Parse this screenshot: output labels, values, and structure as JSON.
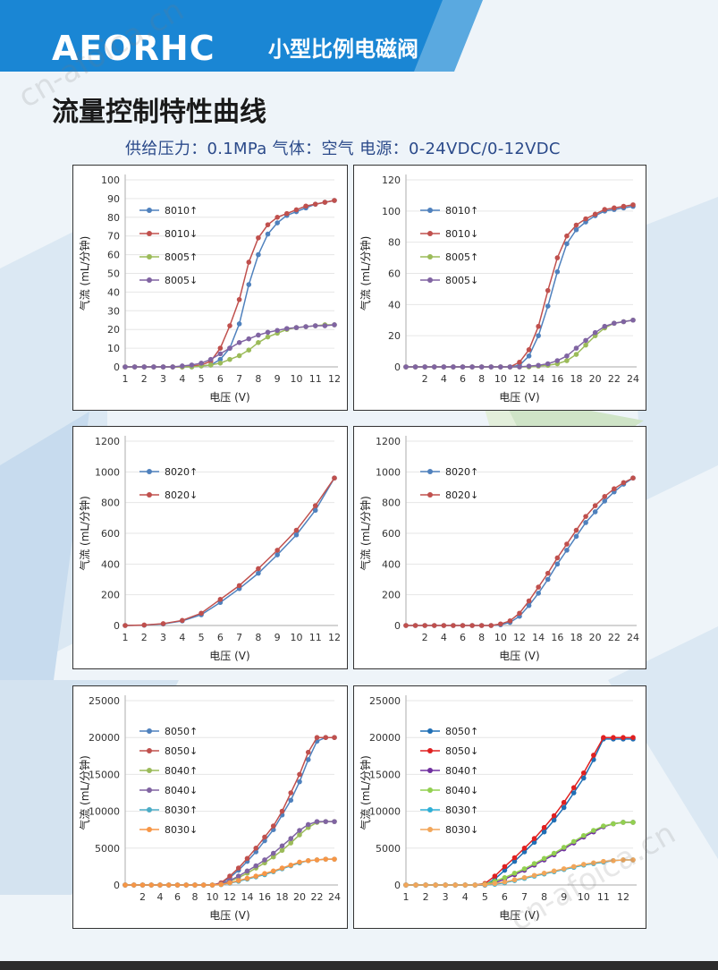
{
  "header": {
    "brand": "AEORHC",
    "product": "小型比例电磁阀",
    "title": "流量控制特性曲线",
    "conditions": "供给压力：0.1MPa 气体：空气 电源：0-24VDC/0-12VDC",
    "colors": {
      "banner": "#1a86d4",
      "title": "#1a1a1a",
      "subtitle": "#2b4a8a"
    }
  },
  "watermarks": [
    "cn-afoica.cn",
    "cn-afoica.cn"
  ],
  "chart_data": [
    {
      "type": "line",
      "xlabel": "电压 (V)",
      "ylabel": "气流 (mL/分钟)",
      "xlim": [
        1,
        12
      ],
      "ylim": [
        0,
        100
      ],
      "xticks": [
        "1",
        "2",
        "3",
        "4",
        "5",
        "6",
        "7",
        "8",
        "9",
        "10",
        "11",
        "12"
      ],
      "yticks": [
        "0",
        "10",
        "20",
        "30",
        "40",
        "50",
        "60",
        "70",
        "80",
        "90",
        "100"
      ],
      "x": [
        1,
        1.5,
        2,
        2.5,
        3,
        3.5,
        4,
        4.5,
        5,
        5.5,
        6,
        6.5,
        7,
        7.5,
        8,
        8.5,
        9,
        9.5,
        10,
        10.5,
        11,
        11.5,
        12
      ],
      "series": [
        {
          "name": "8010↑",
          "color": "#4f81bd",
          "values": [
            0,
            0,
            0,
            0,
            0,
            0,
            0,
            0,
            0.5,
            1,
            4,
            10,
            23,
            44,
            60,
            71,
            77,
            81,
            83,
            85,
            87,
            88,
            89
          ]
        },
        {
          "name": "8010↓",
          "color": "#c0504d",
          "values": [
            0,
            0,
            0,
            0,
            0,
            0,
            0,
            0.5,
            1,
            3,
            10,
            22,
            36,
            56,
            69,
            76,
            80,
            82,
            84,
            86,
            87,
            88,
            89
          ]
        },
        {
          "name": "8005↑",
          "color": "#9bbb59",
          "values": [
            0,
            0,
            0,
            0,
            0,
            0,
            0,
            0,
            0.5,
            1,
            2,
            4,
            6,
            9,
            13,
            16,
            18,
            20,
            21,
            21.5,
            22,
            22.5,
            22.5
          ]
        },
        {
          "name": "8005↓",
          "color": "#8064a2",
          "values": [
            0,
            0,
            0,
            0,
            0,
            0,
            0.5,
            1,
            2,
            4,
            7,
            10,
            13,
            15,
            17,
            18.5,
            19.5,
            20.5,
            21,
            21.5,
            22,
            22,
            22.5
          ]
        }
      ],
      "legend": "top-left"
    },
    {
      "type": "line",
      "xlabel": "电压 (V)",
      "ylabel": "气流 (mL/分钟)",
      "xlim": [
        0,
        24
      ],
      "ylim": [
        0,
        120
      ],
      "xticks": [
        "2",
        "4",
        "6",
        "8",
        "10",
        "12",
        "14",
        "16",
        "18",
        "20",
        "22",
        "24"
      ],
      "yticks": [
        "0",
        "20",
        "40",
        "60",
        "80",
        "100",
        "120"
      ],
      "x": [
        0,
        1,
        2,
        3,
        4,
        5,
        6,
        7,
        8,
        9,
        10,
        11,
        12,
        13,
        14,
        15,
        16,
        17,
        18,
        19,
        20,
        21,
        22,
        23,
        24
      ],
      "series": [
        {
          "name": "8010↑",
          "color": "#4f81bd",
          "values": [
            0,
            0,
            0,
            0,
            0,
            0,
            0,
            0,
            0,
            0,
            0,
            0,
            1,
            7,
            20,
            39,
            61,
            79,
            88,
            93,
            97,
            100,
            101,
            102,
            103
          ]
        },
        {
          "name": "8010↓",
          "color": "#c0504d",
          "values": [
            0,
            0,
            0,
            0,
            0,
            0,
            0,
            0,
            0,
            0,
            0,
            0,
            3,
            11,
            26,
            49,
            70,
            84,
            91,
            95,
            98,
            101,
            102,
            103,
            104
          ]
        },
        {
          "name": "8005↑",
          "color": "#9bbb59",
          "values": [
            0,
            0,
            0,
            0,
            0,
            0,
            0,
            0,
            0,
            0,
            0,
            0,
            0,
            0,
            0.5,
            1,
            2,
            4,
            8,
            14,
            20,
            25,
            28,
            29,
            30
          ]
        },
        {
          "name": "8005↓",
          "color": "#8064a2",
          "values": [
            0,
            0,
            0,
            0,
            0,
            0,
            0,
            0,
            0,
            0,
            0,
            0,
            0,
            0.5,
            1,
            2,
            4,
            7,
            12,
            17,
            22,
            26,
            28,
            29,
            30
          ]
        }
      ],
      "legend": "top-left"
    },
    {
      "type": "line",
      "xlabel": "电压 (V)",
      "ylabel": "气流 (mL/分钟)",
      "xlim": [
        1,
        12
      ],
      "ylim": [
        0,
        1200
      ],
      "xticks": [
        "1",
        "2",
        "3",
        "4",
        "5",
        "6",
        "7",
        "8",
        "9",
        "10",
        "11",
        "12"
      ],
      "yticks": [
        "0",
        "200",
        "400",
        "600",
        "800",
        "1000",
        "1200"
      ],
      "x": [
        1,
        2,
        3,
        4,
        5,
        6,
        7,
        8,
        9,
        10,
        11,
        12
      ],
      "series": [
        {
          "name": "8020↑",
          "color": "#4f81bd",
          "values": [
            0,
            2,
            10,
            30,
            70,
            150,
            240,
            340,
            460,
            590,
            750,
            960
          ]
        },
        {
          "name": "8020↓",
          "color": "#c0504d",
          "values": [
            0,
            3,
            12,
            33,
            80,
            170,
            260,
            370,
            490,
            620,
            780,
            960
          ]
        }
      ],
      "legend": "top-left"
    },
    {
      "type": "line",
      "xlabel": "电压 (V)",
      "ylabel": "气流 (mL/分钟)",
      "xlim": [
        0,
        24
      ],
      "ylim": [
        0,
        1200
      ],
      "xticks": [
        "2",
        "4",
        "6",
        "8",
        "10",
        "12",
        "14",
        "16",
        "18",
        "20",
        "22",
        "24"
      ],
      "yticks": [
        "0",
        "200",
        "400",
        "600",
        "800",
        "1000",
        "1200"
      ],
      "x": [
        0,
        1,
        2,
        3,
        4,
        5,
        6,
        7,
        8,
        9,
        10,
        11,
        12,
        13,
        14,
        15,
        16,
        17,
        18,
        19,
        20,
        21,
        22,
        23,
        24
      ],
      "series": [
        {
          "name": "8020↑",
          "color": "#4f81bd",
          "values": [
            0,
            0,
            0,
            0,
            0,
            0,
            0,
            0,
            0,
            0,
            5,
            20,
            60,
            130,
            210,
            300,
            400,
            490,
            580,
            670,
            740,
            810,
            870,
            920,
            960
          ]
        },
        {
          "name": "8020↓",
          "color": "#c0504d",
          "values": [
            0,
            0,
            0,
            0,
            0,
            0,
            0,
            0,
            0,
            0,
            10,
            30,
            80,
            160,
            250,
            340,
            440,
            530,
            620,
            710,
            780,
            840,
            890,
            930,
            960
          ]
        }
      ],
      "legend": "top-left"
    },
    {
      "type": "line",
      "xlabel": "电压 (V)",
      "ylabel": "气流 (mL/分钟)",
      "xlim": [
        0,
        24
      ],
      "ylim": [
        0,
        25000
      ],
      "xticks": [
        "2",
        "4",
        "6",
        "8",
        "10",
        "12",
        "14",
        "16",
        "18",
        "20",
        "22",
        "24"
      ],
      "yticks": [
        "0",
        "5000",
        "10000",
        "15000",
        "20000",
        "25000"
      ],
      "x": [
        0,
        1,
        2,
        3,
        4,
        5,
        6,
        7,
        8,
        9,
        10,
        11,
        12,
        13,
        14,
        15,
        16,
        17,
        18,
        19,
        20,
        21,
        22,
        23,
        24
      ],
      "series": [
        {
          "name": "8050↑",
          "color": "#4f81bd",
          "values": [
            0,
            0,
            0,
            0,
            0,
            0,
            0,
            0,
            0,
            0,
            0,
            200,
            1000,
            2000,
            3200,
            4500,
            6000,
            7500,
            9500,
            11500,
            14000,
            17000,
            19500,
            20000,
            20000
          ]
        },
        {
          "name": "8050↓",
          "color": "#c0504d",
          "values": [
            0,
            0,
            0,
            0,
            0,
            0,
            0,
            0,
            0,
            0,
            0,
            300,
            1200,
            2300,
            3600,
            5000,
            6500,
            8000,
            10000,
            12500,
            15000,
            18000,
            20000,
            20000,
            20000
          ]
        },
        {
          "name": "8040↑",
          "color": "#9bbb59",
          "values": [
            0,
            0,
            0,
            0,
            0,
            0,
            0,
            0,
            0,
            0,
            0,
            100,
            500,
            1000,
            1600,
            2300,
            3000,
            3800,
            4700,
            5700,
            6800,
            7800,
            8500,
            8600,
            8600
          ]
        },
        {
          "name": "8040↓",
          "color": "#8064a2",
          "values": [
            0,
            0,
            0,
            0,
            0,
            0,
            0,
            0,
            0,
            0,
            0,
            150,
            600,
            1200,
            1900,
            2600,
            3400,
            4300,
            5300,
            6300,
            7400,
            8200,
            8600,
            8600,
            8600
          ]
        },
        {
          "name": "8030↑",
          "color": "#4bacc6",
          "values": [
            0,
            0,
            0,
            0,
            0,
            0,
            0,
            0,
            0,
            0,
            0,
            50,
            250,
            500,
            800,
            1100,
            1400,
            1800,
            2200,
            2600,
            3000,
            3300,
            3400,
            3500,
            3500
          ]
        },
        {
          "name": "8030↓",
          "color": "#f79646",
          "values": [
            0,
            0,
            0,
            0,
            0,
            0,
            0,
            0,
            0,
            0,
            0,
            80,
            300,
            600,
            900,
            1200,
            1550,
            1900,
            2300,
            2700,
            3100,
            3300,
            3400,
            3500,
            3500
          ]
        }
      ],
      "legend": "top-left"
    },
    {
      "type": "line",
      "xlabel": "电压 (V)",
      "ylabel": "气流 (mL/分钟)",
      "xlim": [
        1,
        12.5
      ],
      "ylim": [
        0,
        25000
      ],
      "xticks": [
        "1",
        "2",
        "3",
        "4",
        "5",
        "6",
        "7",
        "8",
        "9",
        "10",
        "11",
        "12"
      ],
      "yticks": [
        "0",
        "5000",
        "10000",
        "15000",
        "20000",
        "25000"
      ],
      "x": [
        1,
        1.5,
        2,
        2.5,
        3,
        3.5,
        4,
        4.5,
        5,
        5.5,
        6,
        6.5,
        7,
        7.5,
        8,
        8.5,
        9,
        9.5,
        10,
        10.5,
        11,
        11.5,
        12,
        12.5
      ],
      "series": [
        {
          "name": "8050↑",
          "color": "#1f6fb5",
          "values": [
            0,
            0,
            0,
            0,
            0,
            0,
            0,
            0,
            0,
            800,
            2000,
            3200,
            4500,
            5800,
            7200,
            8800,
            10500,
            12500,
            14500,
            17000,
            19800,
            19800,
            19800,
            19800
          ]
        },
        {
          "name": "8050↓",
          "color": "#e02020",
          "values": [
            0,
            0,
            0,
            0,
            0,
            0,
            0,
            0,
            200,
            1200,
            2500,
            3700,
            5000,
            6300,
            7800,
            9400,
            11200,
            13200,
            15200,
            17600,
            20000,
            20000,
            20000,
            20000
          ]
        },
        {
          "name": "8040↑",
          "color": "#7030a0",
          "values": [
            0,
            0,
            0,
            0,
            0,
            0,
            0,
            0,
            0,
            300,
            800,
            1400,
            2000,
            2700,
            3400,
            4100,
            4900,
            5700,
            6500,
            7200,
            7900,
            8300,
            8500,
            8500
          ]
        },
        {
          "name": "8040↓",
          "color": "#92d050",
          "values": [
            0,
            0,
            0,
            0,
            0,
            0,
            0,
            0,
            100,
            500,
            1000,
            1600,
            2200,
            2900,
            3600,
            4300,
            5100,
            5900,
            6700,
            7400,
            8000,
            8300,
            8500,
            8500
          ]
        },
        {
          "name": "8030↑",
          "color": "#2eafd6",
          "values": [
            0,
            0,
            0,
            0,
            0,
            0,
            0,
            0,
            0,
            100,
            300,
            600,
            900,
            1200,
            1500,
            1800,
            2100,
            2400,
            2700,
            2900,
            3100,
            3300,
            3400,
            3400
          ]
        },
        {
          "name": "8030↓",
          "color": "#f2a65a",
          "values": [
            0,
            0,
            0,
            0,
            0,
            0,
            0,
            0,
            50,
            200,
            400,
            700,
            1000,
            1300,
            1600,
            1900,
            2200,
            2500,
            2800,
            3000,
            3200,
            3300,
            3400,
            3400
          ]
        }
      ],
      "legend": "top-left"
    }
  ]
}
